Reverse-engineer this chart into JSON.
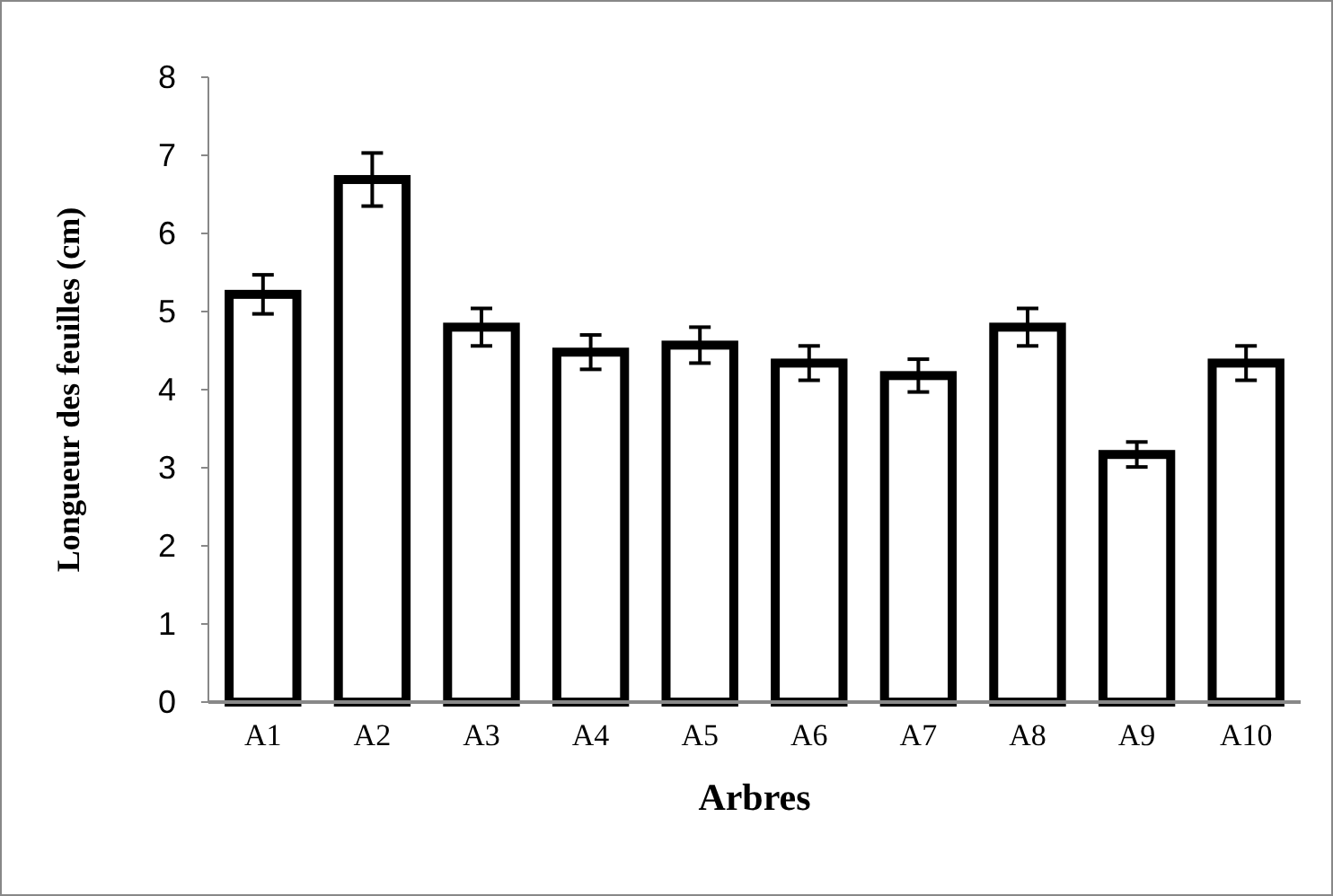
{
  "chart_data": {
    "type": "bar",
    "xlabel": "Arbres",
    "ylabel": "Longueur des feuilles (cm)",
    "categories": [
      "A1",
      "A2",
      "A3",
      "A4",
      "A5",
      "A6",
      "A7",
      "A8",
      "A9",
      "A10"
    ],
    "values": [
      5.22,
      6.69,
      4.8,
      4.48,
      4.57,
      4.34,
      4.18,
      4.8,
      3.17,
      4.34
    ],
    "errors": [
      0.25,
      0.34,
      0.24,
      0.22,
      0.23,
      0.22,
      0.21,
      0.24,
      0.16,
      0.22
    ],
    "color": "#ffffff",
    "ylim": [
      0,
      8
    ],
    "yticks": [
      0,
      1,
      2,
      3,
      4,
      5,
      6,
      7,
      8
    ],
    "grid": false
  }
}
